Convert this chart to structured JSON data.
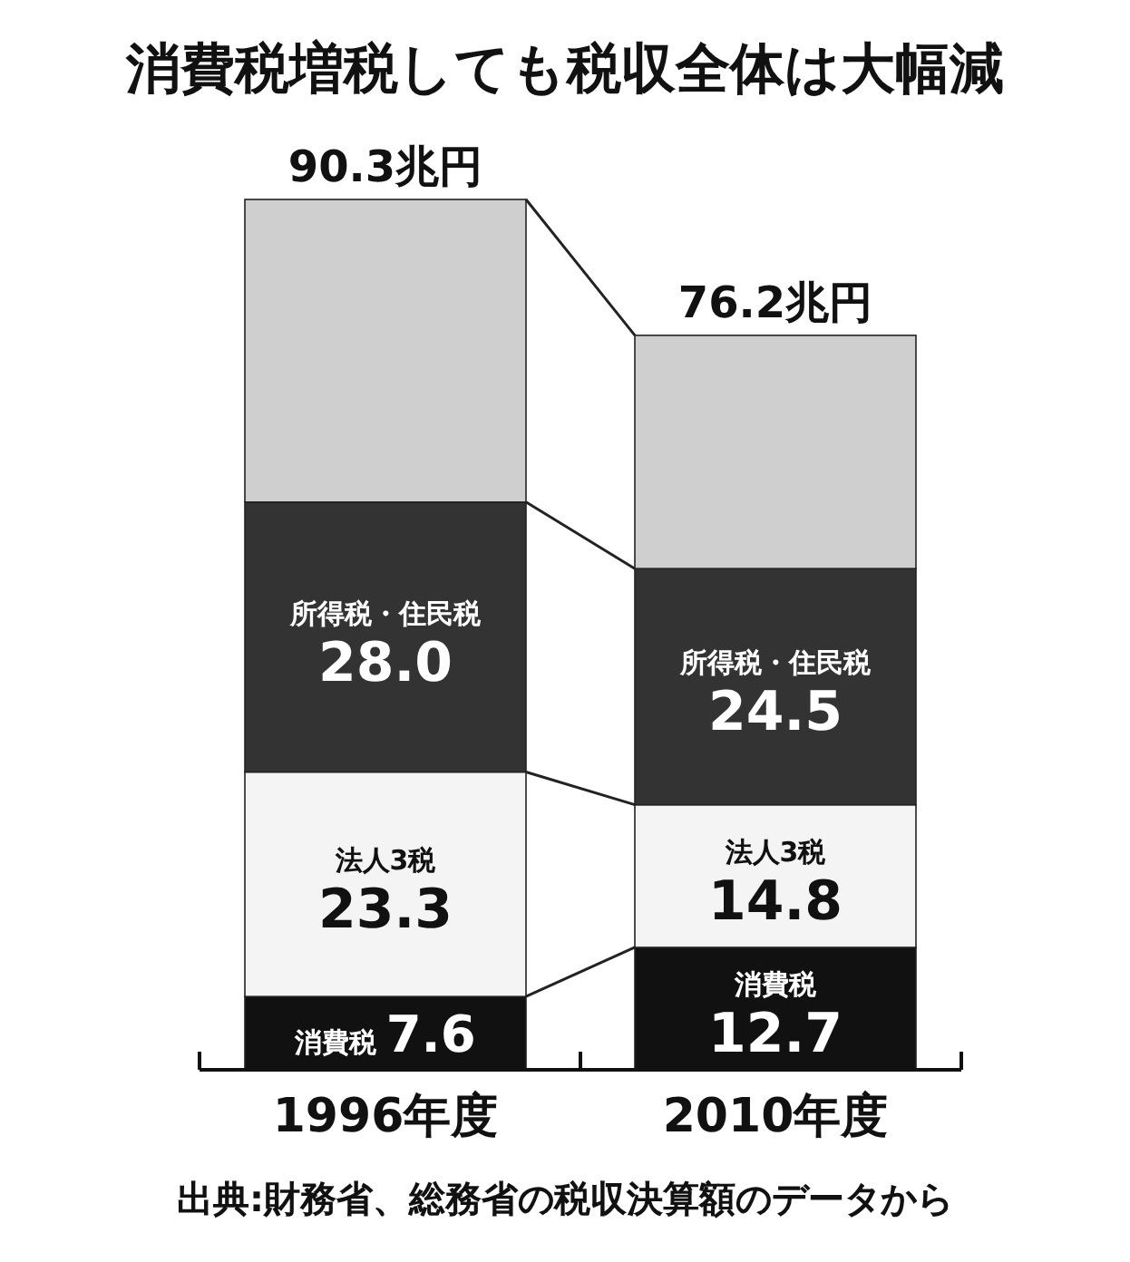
{
  "chart_data": {
    "type": "bar",
    "stacked": true,
    "title": "消費税増税しても税収全体は大幅減",
    "categories": [
      "1996年度",
      "2010年度"
    ],
    "series": [
      {
        "name": "消費税",
        "color": "#111111",
        "values": [
          7.6,
          12.7
        ],
        "value_labels": [
          "7.6",
          "12.7"
        ]
      },
      {
        "name": "法人3税",
        "color": "#f4f4f4",
        "values": [
          23.3,
          14.8
        ],
        "value_labels": [
          "23.3",
          "14.8"
        ]
      },
      {
        "name": "所得税・住民税",
        "color": "#333333",
        "values": [
          28.0,
          24.5
        ],
        "value_labels": [
          "28.0",
          "24.5"
        ]
      },
      {
        "color": "#cfcfcf",
        "values": [
          31.4,
          24.2
        ]
      }
    ],
    "totals": [
      "90.3兆円",
      "76.2兆円"
    ],
    "annotations": [
      "出典:財務省、総務省の税収決算額のデータから"
    ]
  }
}
